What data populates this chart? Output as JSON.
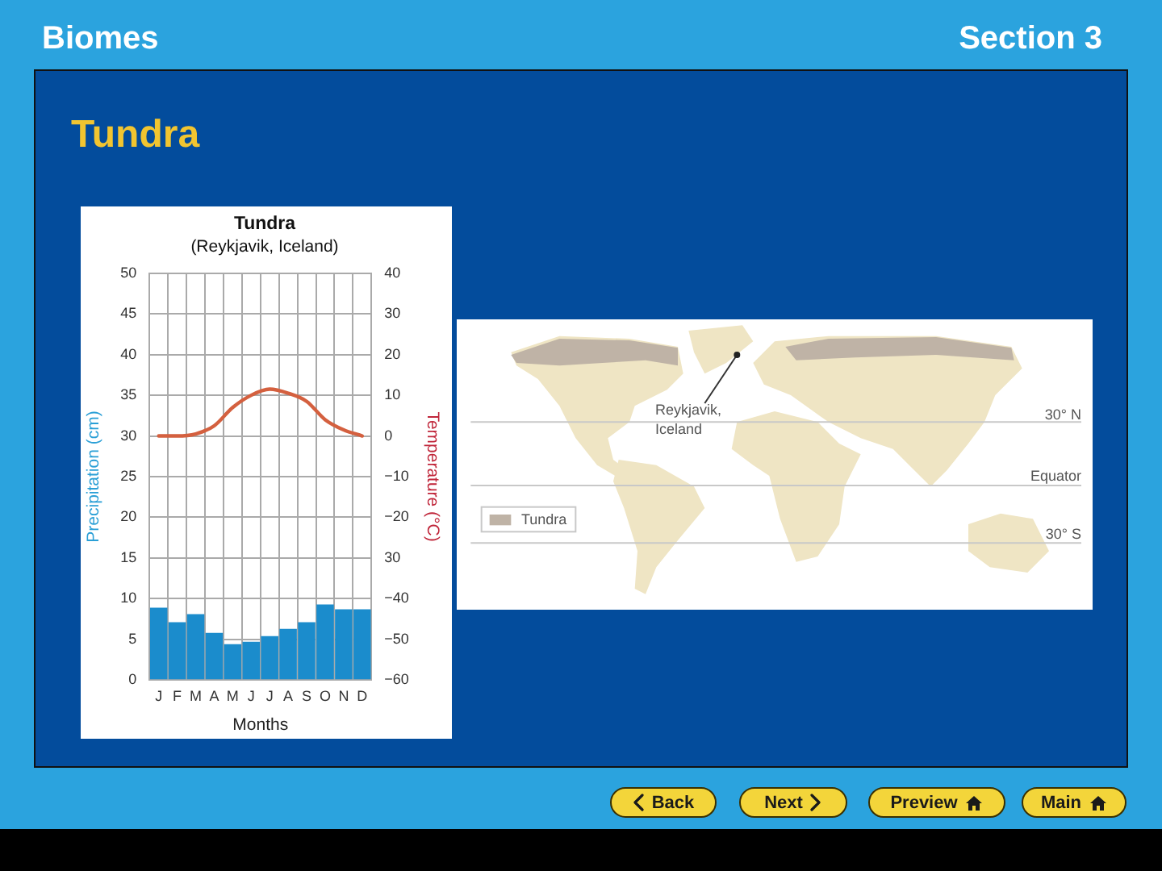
{
  "chart_data": {
    "type": "bar",
    "title": "Tundra",
    "subtitle": "(Reykjavik, Iceland)",
    "xlabel": "Months",
    "ylabel": "Precipitation (cm)",
    "y2label": "Temperature (°C)",
    "categories": [
      "J",
      "F",
      "M",
      "A",
      "M",
      "J",
      "J",
      "A",
      "S",
      "O",
      "N",
      "D"
    ],
    "series": [
      {
        "color": "#1b8ccc",
        "values": [
          8.9,
          7.1,
          8.1,
          5.8,
          4.4,
          4.7,
          5.4,
          6.3,
          7.1,
          9.3,
          8.7,
          8.7
        ]
      },
      {
        "type": "line",
        "axis": "y2",
        "color": "#d4603f",
        "values": [
          0,
          0,
          0.5,
          2.5,
          7,
          10,
          11.5,
          10.5,
          8.5,
          4,
          1.5,
          0
        ]
      }
    ],
    "ylim": [
      0,
      50
    ],
    "yticks": [
      0,
      5,
      10,
      15,
      20,
      25,
      30,
      35,
      40,
      45,
      50
    ],
    "y2lim": [
      -60,
      40
    ],
    "y2ticks": [
      {
        "value": -60,
        "label": "−60"
      },
      {
        "value": -50,
        "label": "−50"
      },
      {
        "value": -40,
        "label": "−40"
      },
      {
        "value": -30,
        "label": "30"
      },
      {
        "value": -20,
        "label": "−20"
      },
      {
        "value": -10,
        "label": "−10"
      },
      0,
      10,
      20,
      30,
      40
    ],
    "grid": true,
    "marker": "none",
    "annotations": [
      "Biomes",
      "Section 3",
      "Tundra",
      "Reykjavik, Iceland",
      "30° N",
      "Equator",
      "30° S",
      "Tundra",
      "Back",
      "Next",
      "Preview",
      "Main"
    ]
  }
}
